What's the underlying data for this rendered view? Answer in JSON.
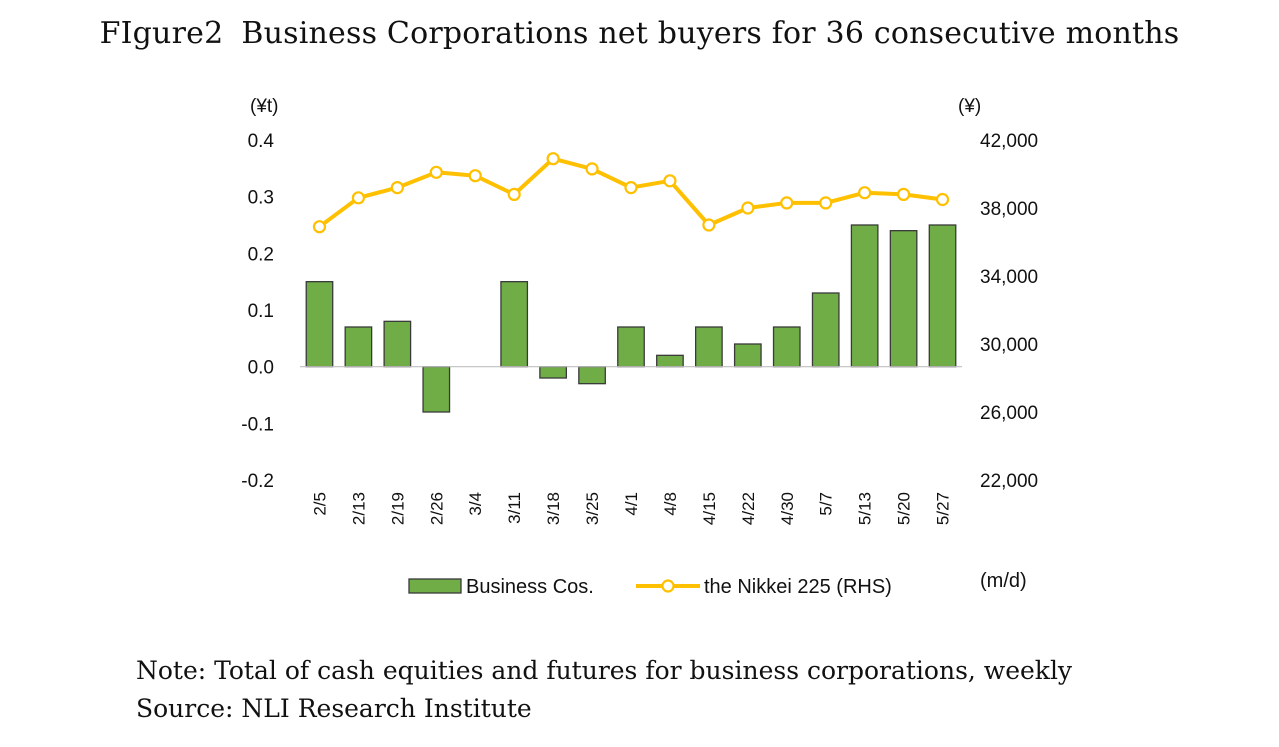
{
  "title_prefix": "FIgure2",
  "title_text": "Business Corporations net buyers for 36 consecutive months",
  "note_line": "Note: Total of cash equities and futures for business corporations, weekly",
  "source_line": "Source: NLI Research Institute",
  "chart_data": {
    "type": "bar+line",
    "categories": [
      "2/5",
      "2/13",
      "2/19",
      "2/26",
      "3/4",
      "3/11",
      "3/18",
      "3/25",
      "4/1",
      "4/8",
      "4/15",
      "4/22",
      "4/30",
      "5/7",
      "5/13",
      "5/20",
      "5/27"
    ],
    "series": [
      {
        "name": "Business Cos.",
        "type": "bar",
        "axis": "left",
        "color": "#70ad47",
        "values": [
          0.15,
          0.07,
          0.08,
          -0.08,
          0.0,
          0.15,
          -0.02,
          -0.03,
          0.07,
          0.02,
          0.07,
          0.04,
          0.07,
          0.13,
          0.25,
          0.24,
          0.25
        ]
      },
      {
        "name": "the Nikkei 225 (RHS)",
        "type": "line",
        "axis": "right",
        "color": "#ffc000",
        "values": [
          36900,
          38600,
          39200,
          40100,
          39900,
          38800,
          40900,
          40300,
          39200,
          39600,
          37000,
          38000,
          38300,
          38300,
          38900,
          38800,
          38500
        ]
      }
    ],
    "y_left": {
      "unit_label": "(¥t)",
      "ylim": [
        -0.2,
        0.4
      ],
      "ticks": [
        "0.4",
        "0.3",
        "0.2",
        "0.1",
        "0.0",
        "-0.1",
        "-0.2"
      ]
    },
    "y_right": {
      "unit_label": "(¥)",
      "ylim": [
        22000,
        42000
      ],
      "ticks": [
        "42,000",
        "38,000",
        "34,000",
        "30,000",
        "26,000",
        "22,000"
      ]
    },
    "x_unit_label": "(m/d)",
    "legend": [
      "Business Cos.",
      "the Nikkei 225 (RHS)"
    ],
    "legend_position": "bottom",
    "grid": false
  }
}
